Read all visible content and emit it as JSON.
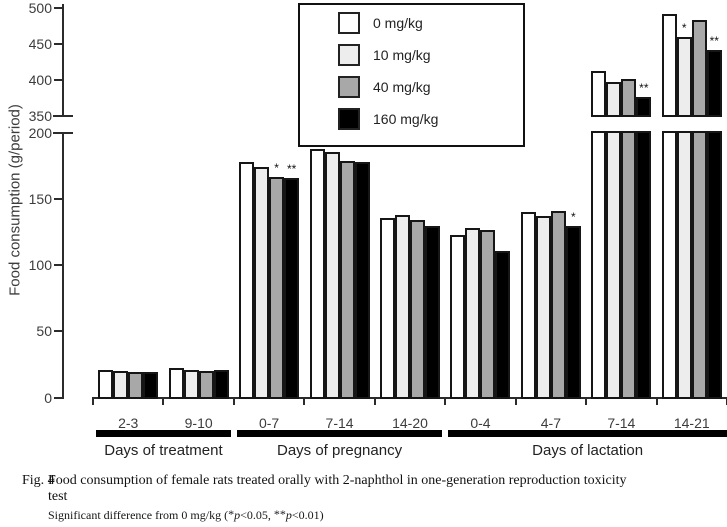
{
  "chart_data": {
    "type": "bar",
    "ylabel": "Food consumption (g/period)",
    "y_axis": {
      "ylim": [
        0,
        500
      ],
      "break_between": [
        200,
        350
      ],
      "lower_ticks": [
        0,
        50,
        100,
        150,
        200
      ],
      "upper_ticks": [
        350,
        400,
        450,
        500
      ],
      "grid": "off"
    },
    "legend": [
      {
        "label": "0 mg/kg",
        "color": "#ffffff"
      },
      {
        "label": "10 mg/kg",
        "color": "#ededed"
      },
      {
        "label": "40 mg/kg",
        "color": "#a8a8a8"
      },
      {
        "label": "160 mg/kg",
        "color": "#000000"
      }
    ],
    "legend_position": "top-center-boxed",
    "groups": [
      {
        "category": "2-3",
        "values": [
          21,
          20,
          19,
          19
        ],
        "sig": [
          "",
          "",
          "",
          ""
        ]
      },
      {
        "category": "9-10",
        "values": [
          22,
          21,
          20,
          21
        ],
        "sig": [
          "",
          "",
          "",
          ""
        ]
      },
      {
        "category": "0-7",
        "values": [
          178,
          174,
          167,
          166
        ],
        "sig": [
          "",
          "",
          "*",
          "**"
        ]
      },
      {
        "category": "7-14",
        "values": [
          188,
          186,
          179,
          178
        ],
        "sig": [
          "",
          "",
          "",
          ""
        ]
      },
      {
        "category": "14-20",
        "values": [
          136,
          138,
          134,
          130
        ],
        "sig": [
          "",
          "",
          "",
          ""
        ]
      },
      {
        "category": "0-4",
        "values": [
          123,
          128,
          127,
          111
        ],
        "sig": [
          "",
          "",
          "",
          ""
        ]
      },
      {
        "category": "4-7",
        "values": [
          140,
          137,
          141,
          130
        ],
        "sig": [
          "",
          "",
          "",
          "*"
        ]
      },
      {
        "category": "7-14",
        "values": [
          412,
          396,
          401,
          376
        ],
        "sig": [
          "",
          "",
          "",
          "**"
        ]
      },
      {
        "category": "14-21",
        "values": [
          491,
          459,
          483,
          441
        ],
        "sig": [
          "",
          "*",
          "",
          "**"
        ]
      }
    ],
    "sections": [
      {
        "label": "Days of treatment",
        "groups": [
          "2-3",
          "9-10"
        ]
      },
      {
        "label": "Days of pregnancy",
        "groups": [
          "0-7",
          "7-14",
          "14-20"
        ]
      },
      {
        "label": "Days of lactation",
        "groups": [
          "0-4",
          "4-7",
          "7-14",
          "14-21"
        ]
      }
    ]
  },
  "caption": {
    "fig_label": "Fig. 4",
    "line1": "Food consumption of female rats treated orally with 2-naphthol in one-generation reproduction toxicity",
    "line2": "test"
  },
  "footnote": {
    "prefix": "Significant difference from 0 mg/kg (",
    "star1": "*",
    "p1": "p",
    "cmp1": "<0.05, ",
    "star2": "**",
    "p2": "p",
    "cmp2": "<0.01)"
  }
}
